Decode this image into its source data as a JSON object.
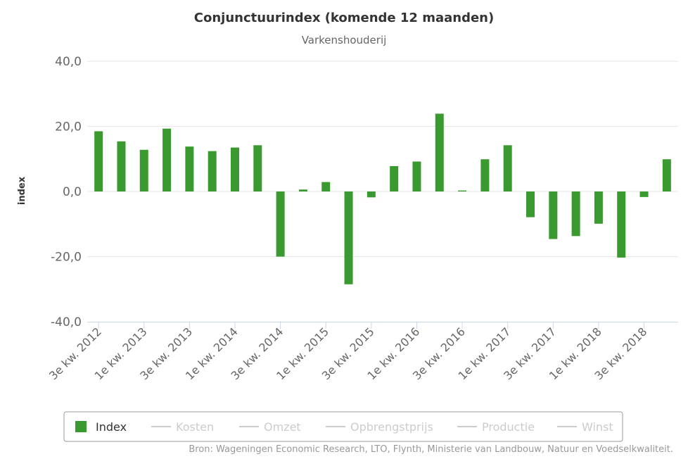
{
  "chart_data": {
    "type": "bar",
    "title": "Conjunctuurindex (komende 12 maanden)",
    "subtitle": "Varkenshouderij",
    "ylabel": "index",
    "ylim": [
      -40,
      40
    ],
    "yticks": [
      40,
      20,
      0,
      -20,
      -40
    ],
    "ytick_labels": [
      "40,0",
      "20,0",
      "0,0",
      "-20,0",
      "-40,0"
    ],
    "grid": true,
    "categories": [
      "3e kw. 2012",
      "4e kw. 2012",
      "1e kw. 2013",
      "2e kw. 2013",
      "3e kw. 2013",
      "4e kw. 2013",
      "1e kw. 2014",
      "2e kw. 2014",
      "3e kw. 2014",
      "4e kw. 2014",
      "1e kw. 2015",
      "2e kw. 2015",
      "3e kw. 2015",
      "4e kw. 2015",
      "1e kw. 2016",
      "2e kw. 2016",
      "3e kw. 2016",
      "4e kw. 2016",
      "1e kw. 2017",
      "2e kw. 2017",
      "3e kw. 2017",
      "4e kw. 2017",
      "1e kw. 2018",
      "2e kw. 2018",
      "3e kw. 2018",
      "4e kw. 2018"
    ],
    "x_tick_labels": [
      "3e kw. 2012",
      "1e kw. 2013",
      "3e kw. 2013",
      "1e kw. 2014",
      "3e kw. 2014",
      "1e kw. 2015",
      "3e kw. 2015",
      "1e kw. 2016",
      "3e kw. 2016",
      "1e kw. 2017",
      "3e kw. 2017",
      "1e kw. 2018",
      "3e kw. 2018"
    ],
    "series": [
      {
        "name": "Index",
        "color": "#3a9a2f",
        "values": [
          18.5,
          15.4,
          12.8,
          19.3,
          13.8,
          12.4,
          13.5,
          14.2,
          -20.0,
          0.6,
          2.9,
          -28.5,
          -1.8,
          7.8,
          9.2,
          23.9,
          0.3,
          9.9,
          14.2,
          -7.9,
          -14.6,
          -13.7,
          -9.9,
          -20.3,
          -1.7,
          9.9
        ]
      }
    ],
    "legend": {
      "placement": "bottom",
      "items": [
        {
          "label": "Index",
          "active": true,
          "color": "#3a9a2f"
        },
        {
          "label": "Kosten",
          "active": false
        },
        {
          "label": "Omzet",
          "active": false
        },
        {
          "label": "Opbrengstprijs",
          "active": false
        },
        {
          "label": "Productie",
          "active": false
        },
        {
          "label": "Winst",
          "active": false
        }
      ]
    },
    "credits": "Bron: Wageningen Economic Research, LTO, Flynth, Ministerie van Landbouw, Natuur en Voedselkwaliteit."
  }
}
